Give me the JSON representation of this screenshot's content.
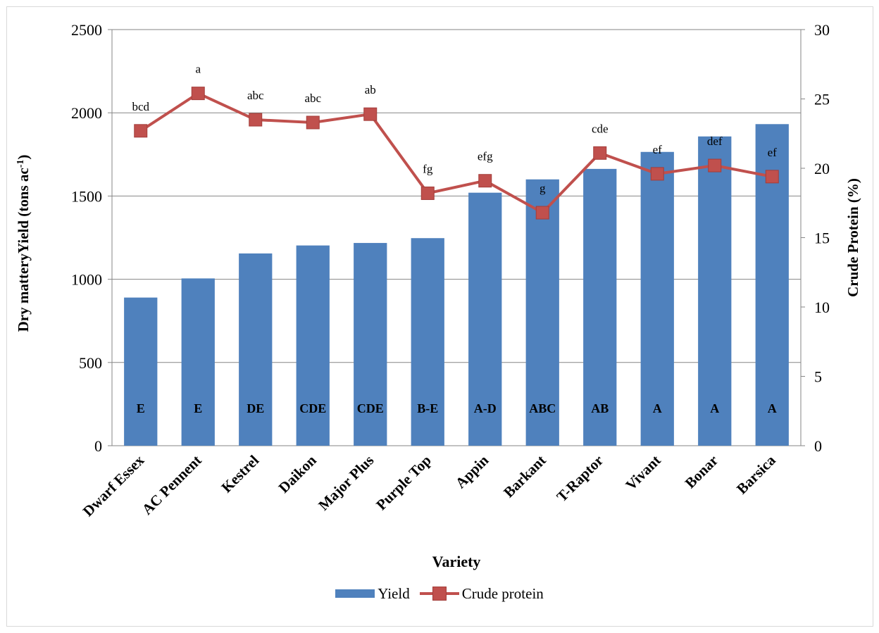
{
  "chart_data": {
    "type": "bar",
    "categories": [
      "Dwarf Essex",
      "AC Pennent",
      "Kestrel",
      "Daikon",
      "Major Plus",
      "Purple Top",
      "Appin",
      "Barkant",
      "T-Raptor",
      "Vivant",
      "Bonar",
      "Barsica"
    ],
    "series": [
      {
        "name": "Yield",
        "type": "bar",
        "axis": "left",
        "color": "#4f81bd",
        "values": [
          890,
          1005,
          1155,
          1203,
          1218,
          1247,
          1520,
          1600,
          1663,
          1765,
          1858,
          1932
        ],
        "letters": [
          "E",
          "E",
          "DE",
          "CDE",
          "CDE",
          "B-E",
          "A-D",
          "ABC",
          "AB",
          "A",
          "A",
          "A"
        ]
      },
      {
        "name": "Crude protein",
        "type": "line",
        "axis": "right",
        "color": "#c0504d",
        "values": [
          22.7,
          25.4,
          23.5,
          23.3,
          23.9,
          18.2,
          19.1,
          16.8,
          21.1,
          19.6,
          20.2,
          19.4
        ],
        "letters": [
          "bcd",
          "a",
          "abc",
          "abc",
          "ab",
          "fg",
          "efg",
          "g",
          "cde",
          "ef",
          "def",
          "ef"
        ]
      }
    ],
    "xlabel": "Variety",
    "ylabel": "Dry matteryYield (tons ac",
    "ylabel_sup": "-1",
    "ylabel_end": ")",
    "y2label": "Crude Protein (%)",
    "ylim": [
      0,
      2500
    ],
    "y2lim": [
      0,
      30
    ],
    "yticks": [
      "0",
      "500",
      "1000",
      "1500",
      "2000",
      "2500"
    ],
    "y2ticks": [
      "0",
      "5",
      "10",
      "15",
      "20",
      "25",
      "30"
    ],
    "grid": true,
    "legend_position": "bottom"
  }
}
